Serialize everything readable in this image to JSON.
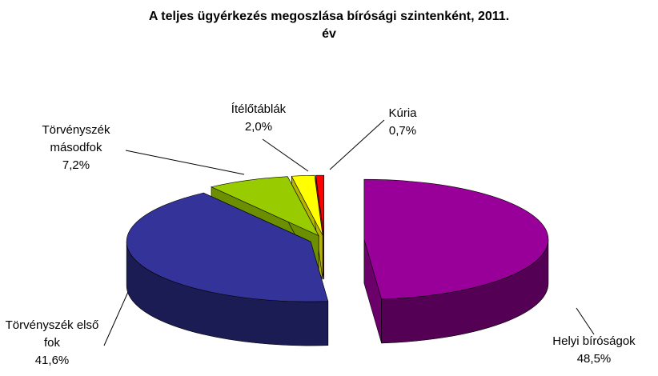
{
  "chart_data": {
    "type": "pie3d",
    "title": "A teljes ügyérkezés megoszlása bírósági szintenként, 2011. év",
    "categories": [
      "Helyi bíróságok",
      "Törvényszék első fok",
      "Törvényszék másodfok",
      "Ítélőtáblák",
      "Kúria"
    ],
    "values": [
      48.5,
      41.6,
      7.2,
      2.0,
      0.7
    ],
    "value_labels": [
      "48,5%",
      "41,6%",
      "7,2%",
      "2,0%",
      "0,7%"
    ],
    "colors": [
      "#990099",
      "#333399",
      "#99cc00",
      "#ffff00",
      "#ff0000"
    ]
  }
}
